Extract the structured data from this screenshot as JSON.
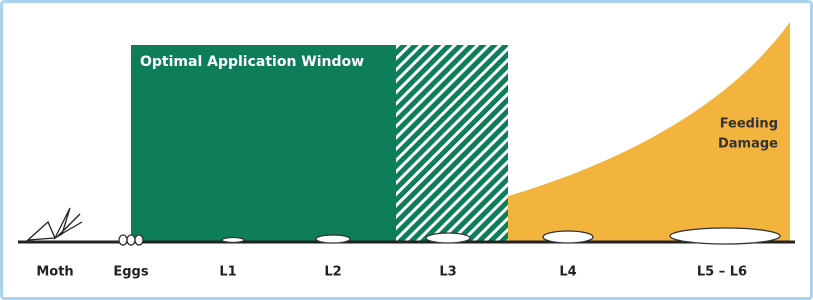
{
  "window": {
    "label": "Optimal Application Window"
  },
  "damage": {
    "label_lines": [
      "Feeding",
      "Damage"
    ]
  },
  "stages": [
    {
      "label": "Moth"
    },
    {
      "label": "Eggs"
    },
    {
      "label": "L1"
    },
    {
      "label": "L2"
    },
    {
      "label": "L3"
    },
    {
      "label": "L4"
    },
    {
      "label": "L5 – L6"
    }
  ]
}
